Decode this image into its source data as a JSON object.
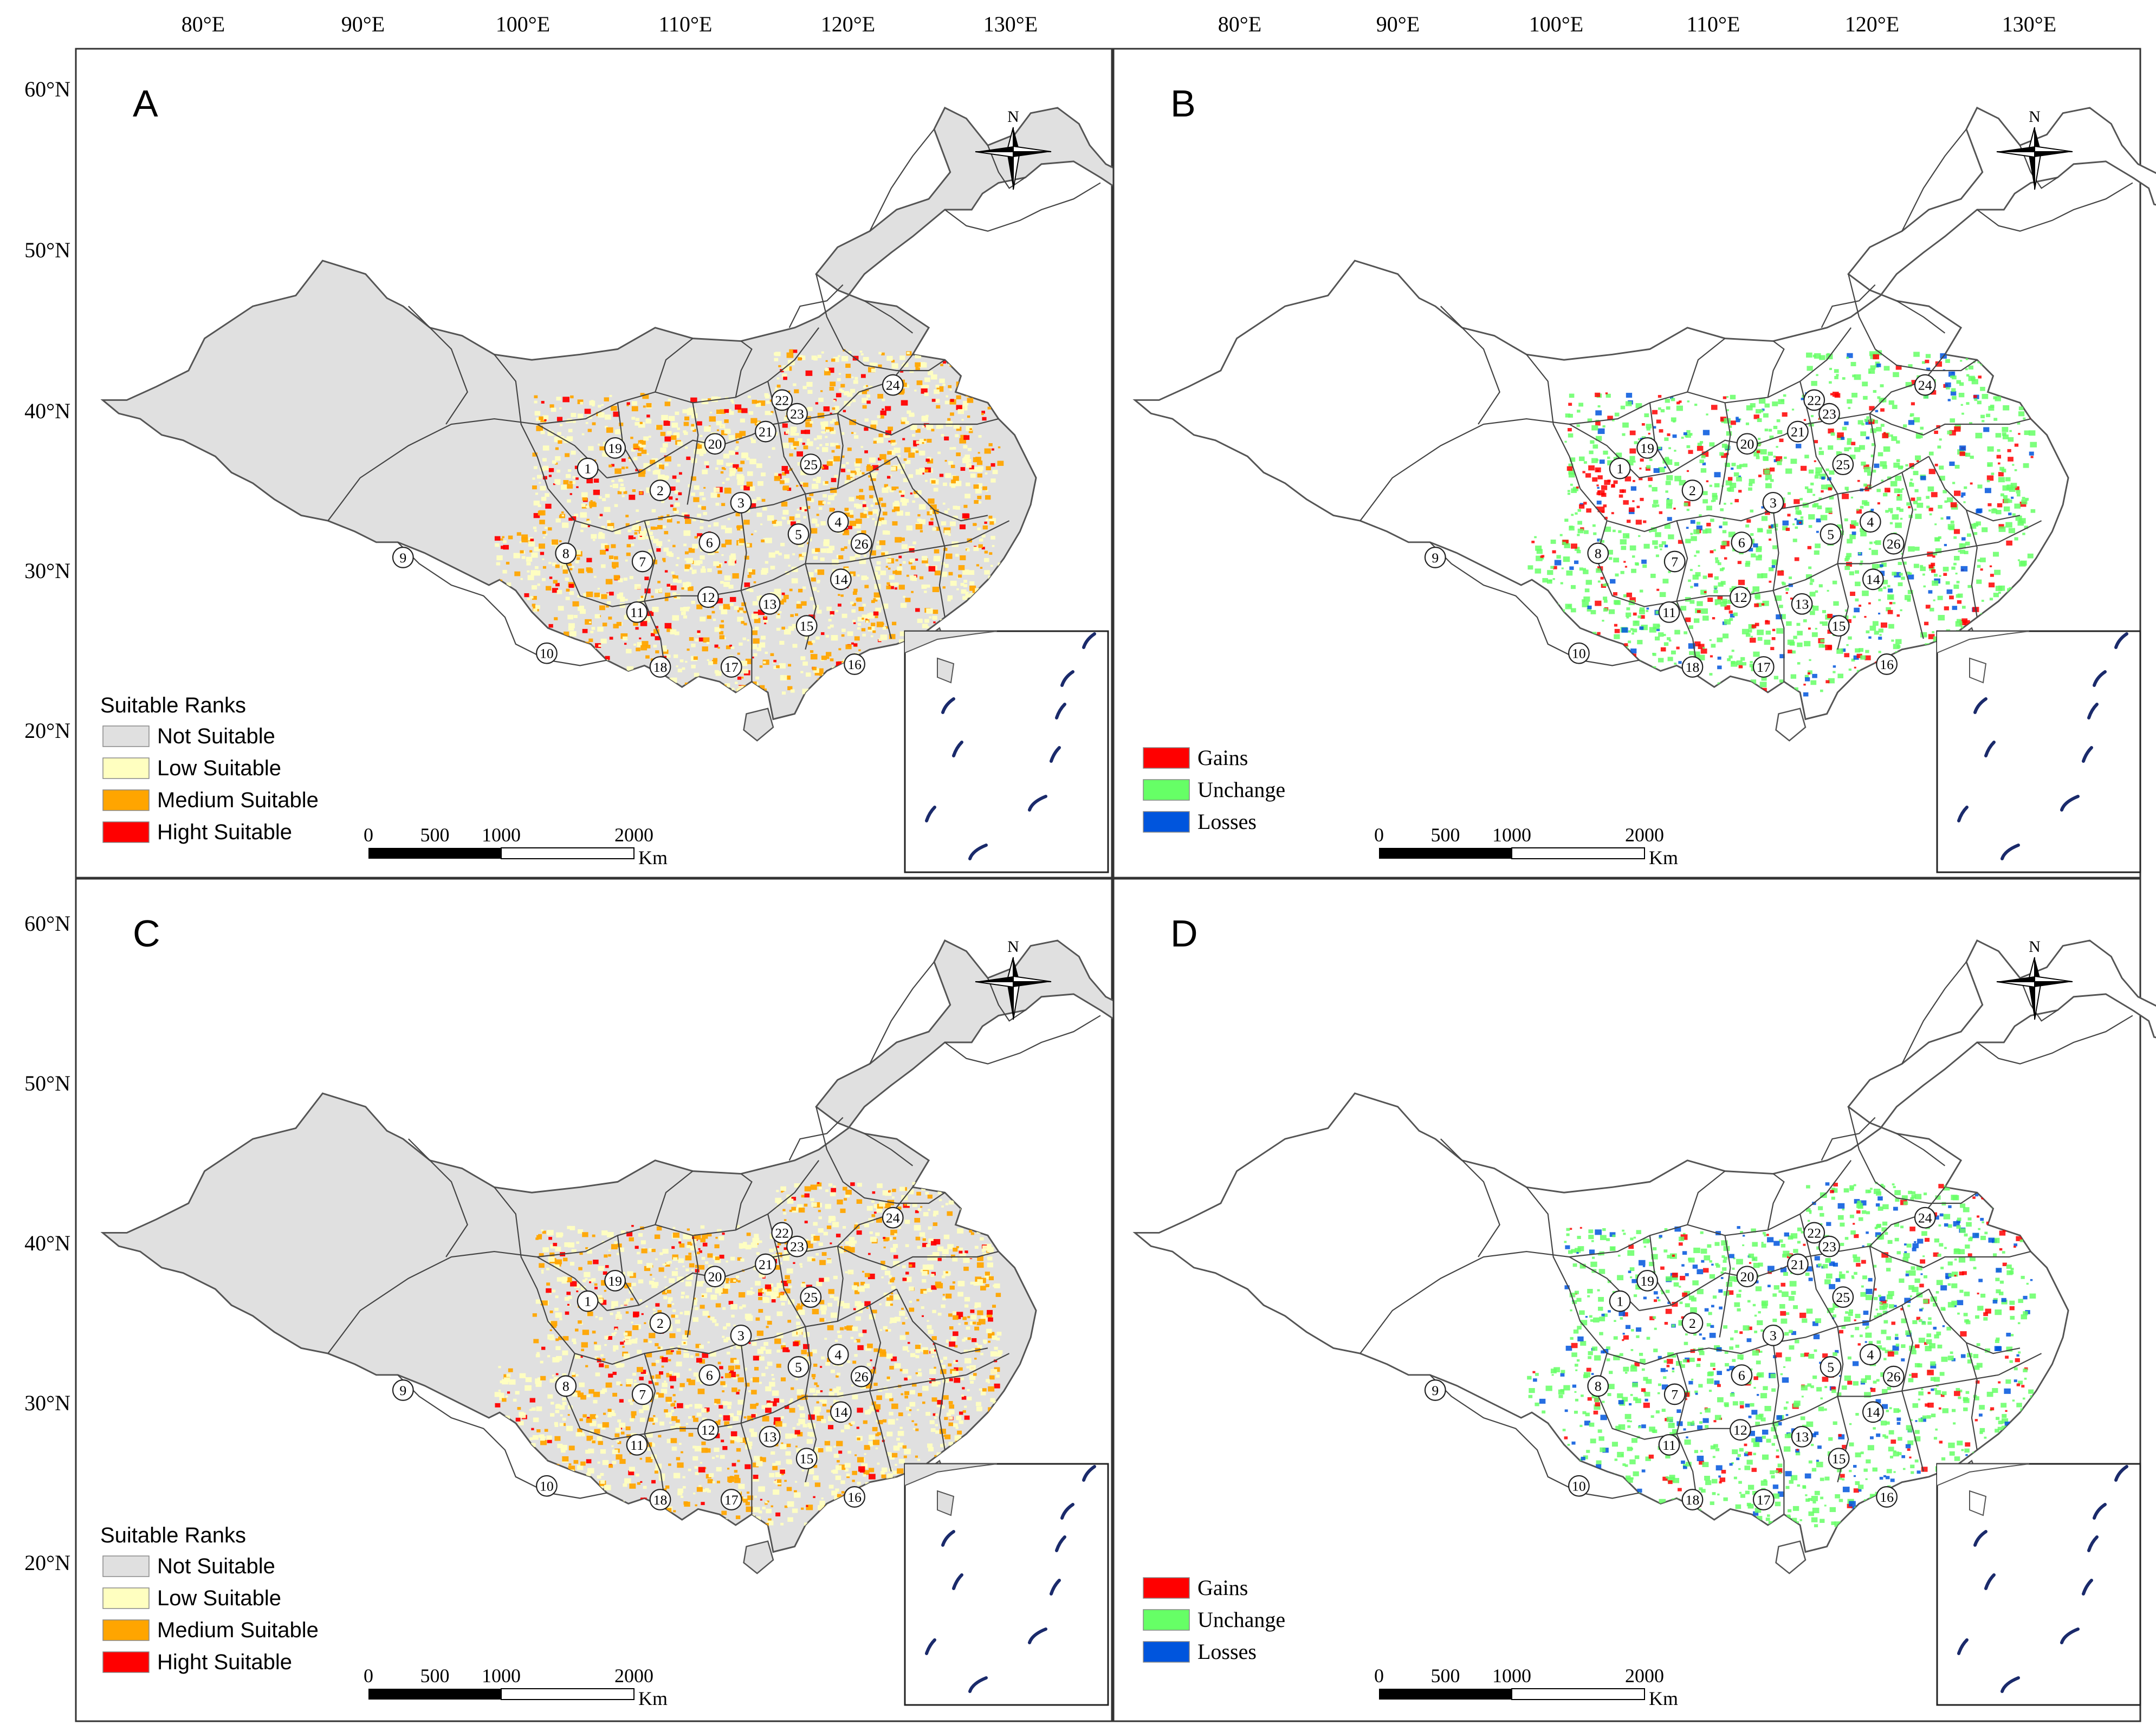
{
  "longitude_ticks": [
    "80°E",
    "90°E",
    "100°E",
    "110°E",
    "120°E",
    "130°E"
  ],
  "latitude_ticks": [
    "60°N",
    "50°N",
    "40°N",
    "30°N",
    "20°N"
  ],
  "north_label": "N",
  "scale_bar": {
    "ticks": [
      "0",
      "500",
      "1000",
      "2000"
    ],
    "unit": "Km"
  },
  "colors": {
    "not_suitable": "#e0e0e0",
    "low_suitable": "#ffffc0",
    "medium_suitable": "#ffa500",
    "high_suitable": "#ff0000",
    "gains": "#ff0000",
    "unchange": "#66ff66",
    "losses": "#0055dd"
  },
  "panels": [
    {
      "letter": "A",
      "kind": "suitability",
      "legend_title": "Suitable Ranks",
      "legend_items": [
        "Not Suitable",
        "Low Suitable",
        "Medium Suitable",
        "Hight Suitable"
      ]
    },
    {
      "letter": "B",
      "kind": "change",
      "legend_items": [
        "Gains",
        "Unchange",
        "Losses"
      ]
    },
    {
      "letter": "C",
      "kind": "suitability",
      "legend_title": "Suitable Ranks",
      "legend_items": [
        "Not Suitable",
        "Low Suitable",
        "Medium Suitable",
        "Hight Suitable"
      ]
    },
    {
      "letter": "D",
      "kind": "change",
      "legend_items": [
        "Gains",
        "Unchange",
        "Losses"
      ]
    }
  ],
  "province_labels": [
    "1",
    "2",
    "3",
    "4",
    "5",
    "6",
    "7",
    "8",
    "9",
    "10",
    "11",
    "12",
    "13",
    "14",
    "15",
    "16",
    "17",
    "18",
    "19",
    "20",
    "21",
    "22",
    "23",
    "24",
    "25",
    "26"
  ]
}
